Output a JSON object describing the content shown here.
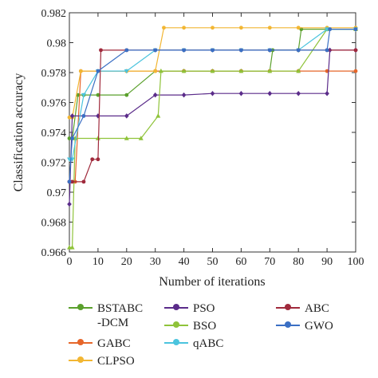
{
  "chart_data": {
    "type": "line",
    "title": "",
    "xlabel": "Number of iterations",
    "ylabel": "Classification accuracy",
    "xlim": [
      0,
      100
    ],
    "ylim": [
      0.966,
      0.982
    ],
    "xticks": [
      "0",
      "10",
      "20",
      "30",
      "40",
      "50",
      "60",
      "70",
      "80",
      "90",
      "100"
    ],
    "yticks": [
      "0.966",
      "0.968",
      "0.97",
      "0.972",
      "0.974",
      "0.976",
      "0.978",
      "0.98",
      "0.982"
    ],
    "grid": false,
    "legend_position": "bottom",
    "series": [
      {
        "name": "BSTABC\n-DCM",
        "color": "#5aa02c",
        "marker": "circle",
        "x": [
          0,
          1,
          3,
          5,
          10,
          20,
          30,
          40,
          50,
          60,
          70,
          71,
          80,
          81,
          90,
          100
        ],
        "y": [
          0.9736,
          0.9736,
          0.9765,
          0.9765,
          0.9765,
          0.9765,
          0.9781,
          0.9781,
          0.9781,
          0.9781,
          0.9781,
          0.9795,
          0.9795,
          0.9809,
          0.9809,
          0.9809
        ]
      },
      {
        "name": "GABC",
        "color": "#e6662a",
        "marker": "circle",
        "x": [
          0,
          2,
          4,
          10,
          20,
          30,
          40,
          50,
          60,
          70,
          80,
          90,
          100
        ],
        "y": [
          0.9707,
          0.9707,
          0.9781,
          0.9781,
          0.9781,
          0.9781,
          0.9781,
          0.9781,
          0.9781,
          0.9781,
          0.9781,
          0.9781,
          0.9781
        ]
      },
      {
        "name": "CLPSO",
        "color": "#f2b632",
        "marker": "circle",
        "x": [
          0,
          1,
          4,
          10,
          20,
          30,
          33,
          40,
          50,
          60,
          70,
          80,
          90,
          100
        ],
        "y": [
          0.975,
          0.975,
          0.9781,
          0.9781,
          0.9781,
          0.9781,
          0.981,
          0.981,
          0.981,
          0.981,
          0.981,
          0.981,
          0.981,
          0.981
        ]
      },
      {
        "name": "PSO",
        "color": "#5b2c8a",
        "marker": "diamond",
        "x": [
          0,
          1,
          10,
          20,
          30,
          40,
          50,
          60,
          70,
          80,
          90,
          91,
          100
        ],
        "y": [
          0.9692,
          0.9751,
          0.9751,
          0.9751,
          0.9765,
          0.9765,
          0.9766,
          0.9766,
          0.9766,
          0.9766,
          0.9766,
          0.9795,
          0.9795
        ]
      },
      {
        "name": "BSO",
        "color": "#8fc33a",
        "marker": "triangle",
        "x": [
          0,
          1,
          2,
          10,
          20,
          25,
          31,
          32,
          40,
          50,
          60,
          70,
          80,
          90,
          100
        ],
        "y": [
          0.9663,
          0.9663,
          0.9736,
          0.9736,
          0.9736,
          0.9736,
          0.9751,
          0.9781,
          0.9781,
          0.9781,
          0.9781,
          0.9781,
          0.9781,
          0.9809,
          0.9809
        ]
      },
      {
        "name": "qABC",
        "color": "#4bc4de",
        "marker": "triangle-down",
        "x": [
          0,
          1,
          5,
          10,
          20,
          30,
          40,
          50,
          60,
          70,
          80,
          90,
          100
        ],
        "y": [
          0.9722,
          0.9722,
          0.9765,
          0.9781,
          0.9781,
          0.9795,
          0.9795,
          0.9795,
          0.9795,
          0.9795,
          0.9795,
          0.9809,
          0.9809
        ]
      },
      {
        "name": "ABC",
        "color": "#a02a3c",
        "marker": "circle",
        "x": [
          0,
          1,
          5,
          8,
          10,
          11,
          20,
          30,
          40,
          50,
          60,
          70,
          80,
          90,
          100
        ],
        "y": [
          0.9707,
          0.9707,
          0.9707,
          0.9722,
          0.9722,
          0.9795,
          0.9795,
          0.9795,
          0.9795,
          0.9795,
          0.9795,
          0.9795,
          0.9795,
          0.9795,
          0.9795
        ]
      },
      {
        "name": "GWO",
        "color": "#3a6fc4",
        "marker": "circle",
        "x": [
          0,
          1,
          5,
          10,
          20,
          30,
          40,
          50,
          60,
          70,
          80,
          90,
          91,
          100
        ],
        "y": [
          0.9707,
          0.9736,
          0.9751,
          0.9781,
          0.9795,
          0.9795,
          0.9795,
          0.9795,
          0.9795,
          0.9795,
          0.9795,
          0.9795,
          0.9809,
          0.9809
        ]
      }
    ]
  },
  "legend": {
    "items": [
      {
        "label": "BSTABC\n-DCM",
        "color": "#5aa02c"
      },
      {
        "label": "GABC",
        "color": "#e6662a"
      },
      {
        "label": "CLPSO",
        "color": "#f2b632"
      },
      {
        "label": "PSO",
        "color": "#5b2c8a"
      },
      {
        "label": "BSO",
        "color": "#8fc33a"
      },
      {
        "label": "qABC",
        "color": "#4bc4de"
      },
      {
        "label": "ABC",
        "color": "#a02a3c"
      },
      {
        "label": "GWO",
        "color": "#3a6fc4"
      }
    ]
  }
}
